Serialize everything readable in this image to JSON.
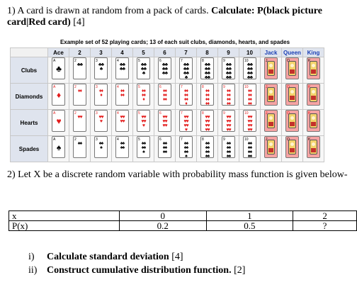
{
  "q1": {
    "prefix": "1) A card is drawn at random from a pack of cards. ",
    "bold": "Calculate: P(black picture card|Red card)",
    "suffix": " [4]"
  },
  "cards": {
    "caption": "Example set of 52 playing cards; 13 of each suit clubs, diamonds, hearts, and spades",
    "ranks": [
      "Ace",
      "2",
      "3",
      "4",
      "5",
      "6",
      "7",
      "8",
      "9",
      "10",
      "Jack",
      "Queen",
      "King"
    ],
    "suits": [
      {
        "name": "Clubs",
        "symbol": "♣",
        "color": "#000000"
      },
      {
        "name": "Diamonds",
        "symbol": "♦",
        "color": "#e31b1b"
      },
      {
        "name": "Hearts",
        "symbol": "♥",
        "color": "#e31b1b"
      },
      {
        "name": "Spades",
        "symbol": "♠",
        "color": "#000000"
      }
    ],
    "rank_marks": [
      "A",
      "2",
      "3",
      "4",
      "5",
      "6",
      "7",
      "8",
      "9",
      "10",
      "J",
      "Q",
      "K"
    ]
  },
  "q2": {
    "text": "2) Let X be a discrete random variable with probability mass function is given below-"
  },
  "pmf": {
    "header_label": "x",
    "header_values": [
      "0",
      "1",
      "2"
    ],
    "row_label": "P(x)",
    "row_values": [
      "0.2",
      "0.5",
      "?"
    ]
  },
  "subs": [
    {
      "num": "i)",
      "text": "Calculate standard deviation",
      "suffix": " [4]"
    },
    {
      "num": "ii)",
      "text": "Construct cumulative distribution function.",
      "suffix": " [2]"
    }
  ]
}
